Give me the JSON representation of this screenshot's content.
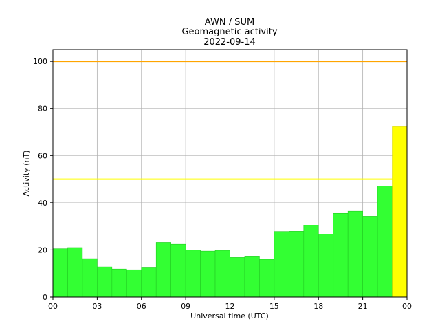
{
  "chart_data": {
    "type": "bar",
    "title_lines": [
      "AWN / SUM",
      "Geomagnetic activity",
      "2022-09-14"
    ],
    "xlabel": "Universal time (UTC)",
    "ylabel": "Activity (nT)",
    "xlim_hours": [
      0,
      24
    ],
    "ylim": [
      0,
      105
    ],
    "x_tick_hours": [
      0,
      3,
      6,
      9,
      12,
      15,
      18,
      21,
      24
    ],
    "x_tick_labels": [
      "00",
      "03",
      "06",
      "09",
      "12",
      "15",
      "18",
      "21",
      "00"
    ],
    "y_ticks": [
      0,
      20,
      40,
      60,
      80,
      100
    ],
    "y_tick_labels": [
      "0",
      "20",
      "40",
      "60",
      "80",
      "100"
    ],
    "grid": true,
    "bars": [
      {
        "start_hour": 0,
        "value": 20.5,
        "color": "#33ff33"
      },
      {
        "start_hour": 1,
        "value": 21.0,
        "color": "#33ff33"
      },
      {
        "start_hour": 2,
        "value": 16.3,
        "color": "#33ff33"
      },
      {
        "start_hour": 3,
        "value": 12.8,
        "color": "#33ff33"
      },
      {
        "start_hour": 4,
        "value": 11.9,
        "color": "#33ff33"
      },
      {
        "start_hour": 5,
        "value": 11.6,
        "color": "#33ff33"
      },
      {
        "start_hour": 6,
        "value": 12.4,
        "color": "#33ff33"
      },
      {
        "start_hour": 7,
        "value": 23.2,
        "color": "#33ff33"
      },
      {
        "start_hour": 8,
        "value": 22.4,
        "color": "#33ff33"
      },
      {
        "start_hour": 9,
        "value": 19.9,
        "color": "#33ff33"
      },
      {
        "start_hour": 10,
        "value": 19.5,
        "color": "#33ff33"
      },
      {
        "start_hour": 11,
        "value": 19.8,
        "color": "#33ff33"
      },
      {
        "start_hour": 12,
        "value": 16.8,
        "color": "#33ff33"
      },
      {
        "start_hour": 13,
        "value": 17.1,
        "color": "#33ff33"
      },
      {
        "start_hour": 14,
        "value": 16.0,
        "color": "#33ff33"
      },
      {
        "start_hour": 15,
        "value": 27.8,
        "color": "#33ff33"
      },
      {
        "start_hour": 16,
        "value": 27.9,
        "color": "#33ff33"
      },
      {
        "start_hour": 17,
        "value": 30.4,
        "color": "#33ff33"
      },
      {
        "start_hour": 18,
        "value": 26.7,
        "color": "#33ff33"
      },
      {
        "start_hour": 19,
        "value": 35.5,
        "color": "#33ff33"
      },
      {
        "start_hour": 20,
        "value": 36.4,
        "color": "#33ff33"
      },
      {
        "start_hour": 21,
        "value": 34.3,
        "color": "#33ff33"
      },
      {
        "start_hour": 22,
        "value": 47.1,
        "color": "#33ff33"
      },
      {
        "start_hour": 23,
        "value": 72.2,
        "color": "#ffff00"
      }
    ],
    "threshold_lines": [
      {
        "value": 50,
        "color": "#ffff00",
        "x_end_hour": 23
      },
      {
        "value": 100,
        "color": "#ffa500",
        "x_end_hour": 24
      }
    ]
  }
}
